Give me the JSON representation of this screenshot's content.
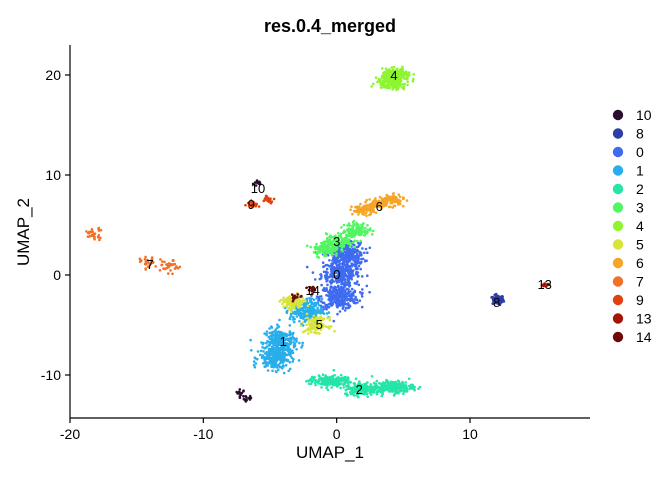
{
  "chart_data": {
    "type": "scatter",
    "title": "res.0.4_merged",
    "xlabel": "UMAP_1",
    "ylabel": "UMAP_2",
    "xlim": [
      -20,
      19
    ],
    "ylim": [
      -14.3,
      23
    ],
    "xticks": [
      -20,
      -10,
      0,
      10
    ],
    "yticks": [
      -10,
      0,
      10,
      20
    ],
    "grid": false,
    "legend_position": "right",
    "series": [
      {
        "name": "10",
        "color": "#2a0f2e",
        "centers": [
          [
            -5.9,
            9.2
          ],
          [
            -7.2,
            -11.8
          ],
          [
            -6.6,
            -12.4
          ]
        ],
        "spread": [
          0.3,
          0.3
        ],
        "count": 40,
        "label_at": [
          -5.9,
          8.7
        ]
      },
      {
        "name": "8",
        "color": "#2f3ea6",
        "centers": [
          [
            12.1,
            -2.5
          ]
        ],
        "spread": [
          0.35,
          0.4
        ],
        "count": 90,
        "label_at": [
          12.0,
          -2.7
        ]
      },
      {
        "name": "0",
        "color": "#3f6bf0",
        "centers": [
          [
            0.3,
            0.1
          ],
          [
            0.2,
            -2.2
          ],
          [
            0.6,
            2.0
          ]
        ],
        "spread": [
          1.2,
          1.0
        ],
        "count": 900,
        "label_at": [
          0.0,
          0.1
        ]
      },
      {
        "name": "1",
        "color": "#28aeea",
        "centers": [
          [
            -4.2,
            -6.6
          ],
          [
            -4.6,
            -8.3
          ],
          [
            -2.3,
            -3.6
          ]
        ],
        "spread": [
          1.0,
          1.0
        ],
        "count": 700,
        "label_at": [
          -4.0,
          -6.6
        ]
      },
      {
        "name": "2",
        "color": "#25e5a8",
        "centers": [
          [
            2.1,
            -11.4
          ],
          [
            4.2,
            -11.2
          ],
          [
            -0.5,
            -10.6
          ]
        ],
        "spread": [
          1.3,
          0.5
        ],
        "count": 600,
        "label_at": [
          1.7,
          -11.4
        ]
      },
      {
        "name": "3",
        "color": "#52f562",
        "centers": [
          [
            0.2,
            3.4
          ],
          [
            1.5,
            4.5
          ],
          [
            -0.8,
            2.6
          ]
        ],
        "spread": [
          0.8,
          0.6
        ],
        "count": 350,
        "label_at": [
          0.0,
          3.4
        ]
      },
      {
        "name": "4",
        "color": "#8ef531",
        "centers": [
          [
            4.5,
            20.0
          ],
          [
            4.1,
            19.2
          ]
        ],
        "spread": [
          0.9,
          0.5
        ],
        "count": 350,
        "label_at": [
          4.3,
          20.0
        ]
      },
      {
        "name": "5",
        "color": "#d8e43a",
        "centers": [
          [
            -1.5,
            -5.0
          ],
          [
            -3.3,
            -2.8
          ]
        ],
        "spread": [
          0.7,
          0.6
        ],
        "count": 260,
        "label_at": [
          -1.3,
          -4.9
        ]
      },
      {
        "name": "6",
        "color": "#f5a527",
        "centers": [
          [
            3.2,
            7.1
          ],
          [
            4.2,
            7.5
          ],
          [
            2.0,
            6.5
          ]
        ],
        "spread": [
          0.7,
          0.4
        ],
        "count": 260,
        "label_at": [
          3.2,
          6.9
        ]
      },
      {
        "name": "7",
        "color": "#f27126",
        "centers": [
          [
            -14.0,
            1.2
          ],
          [
            -12.5,
            0.8
          ],
          [
            -18.2,
            4.1
          ]
        ],
        "spread": [
          0.6,
          0.5
        ],
        "count": 90,
        "label_at": [
          -14.0,
          1.1
        ]
      },
      {
        "name": "9",
        "color": "#e0410f",
        "centers": [
          [
            -5.1,
            7.6
          ],
          [
            -6.3,
            7.1
          ]
        ],
        "spread": [
          0.35,
          0.3
        ],
        "count": 45,
        "label_at": [
          -6.4,
          7.1
        ]
      },
      {
        "name": "13",
        "color": "#a31606",
        "centers": [
          [
            15.6,
            -1.0
          ]
        ],
        "spread": [
          0.25,
          0.12
        ],
        "count": 15,
        "label_at": [
          15.6,
          -0.9
        ]
      },
      {
        "name": "14",
        "color": "#6c0a0a",
        "centers": [
          [
            -1.8,
            -1.5
          ],
          [
            -3.0,
            -2.2
          ]
        ],
        "spread": [
          0.35,
          0.3
        ],
        "count": 25,
        "label_at": [
          -1.8,
          -1.5
        ]
      }
    ]
  }
}
